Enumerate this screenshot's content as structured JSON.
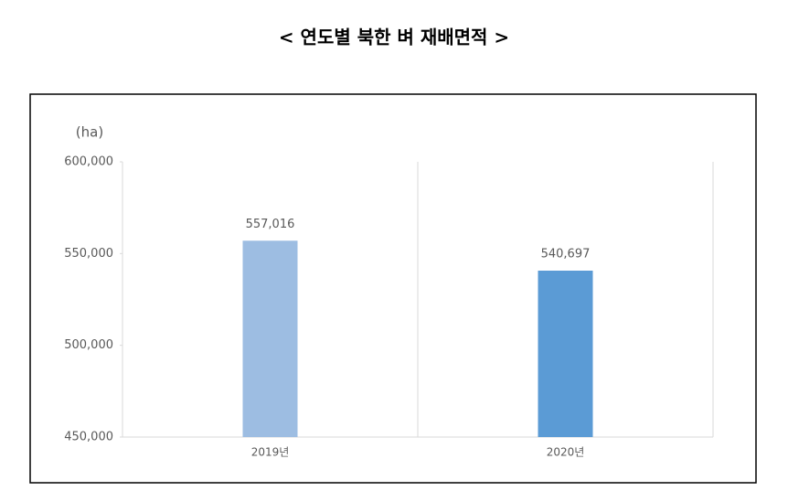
{
  "chart_data": {
    "type": "bar",
    "title": "< 연도별 북한 벼 재배면적 >",
    "y_unit": "(ha)",
    "categories": [
      "2019년",
      "2020년"
    ],
    "values": [
      557016,
      540697
    ],
    "value_labels": [
      "557,016",
      "540,697"
    ],
    "colors": [
      "#9dbde2",
      "#5b9bd5"
    ],
    "ylim": [
      450000,
      600000
    ],
    "yticks": [
      {
        "value": 450000,
        "label": "450,000"
      },
      {
        "value": 500000,
        "label": "500,000"
      },
      {
        "value": 550000,
        "label": "550,000"
      },
      {
        "value": 600000,
        "label": "600,000"
      }
    ],
    "grid": false
  }
}
